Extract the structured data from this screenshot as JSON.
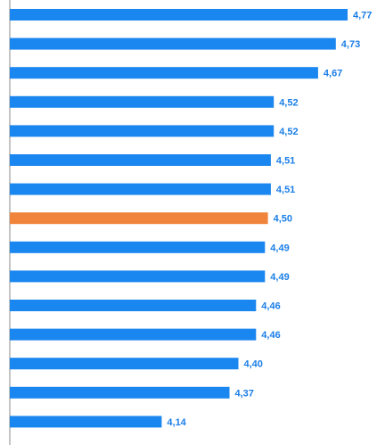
{
  "chart_data": {
    "type": "bar",
    "orientation": "horizontal",
    "categories": [
      "",
      "",
      "",
      "",
      "",
      "",
      "",
      "",
      "",
      "",
      "",
      "",
      "",
      "",
      ""
    ],
    "values": [
      4.77,
      4.73,
      4.67,
      4.52,
      4.52,
      4.51,
      4.51,
      4.5,
      4.49,
      4.49,
      4.46,
      4.46,
      4.4,
      4.37,
      4.14
    ],
    "data_labels": [
      "4,77",
      "4,73",
      "4,67",
      "4,52",
      "4,52",
      "4,51",
      "4,51",
      "4,50",
      "4,49",
      "4,49",
      "4,46",
      "4,46",
      "4,40",
      "4,37",
      "4,14"
    ],
    "highlight_index": 7,
    "colors": {
      "bar": "#1a86f0",
      "highlight": "#f0843a",
      "label": "#1a7ee6",
      "axis": "#888888"
    },
    "title": "",
    "xlabel": "",
    "ylabel": "",
    "grid": false
  }
}
